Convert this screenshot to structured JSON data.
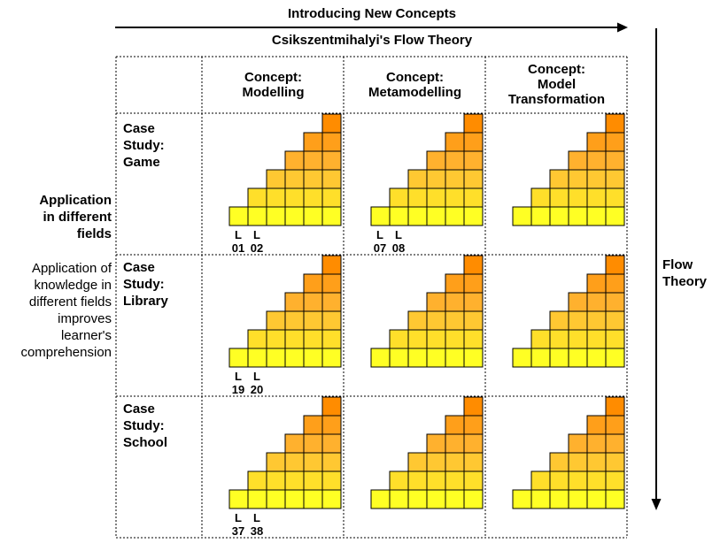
{
  "header": {
    "top_label": "Introducing New Concepts",
    "sub_label": "Csikszentmihalyi's Flow Theory"
  },
  "left": {
    "heading_lines": [
      "Application",
      "in different",
      "fields"
    ],
    "description_lines": [
      "Application of",
      "knowledge in",
      "different fields",
      "improves",
      "learner's",
      "comprehension"
    ]
  },
  "right": {
    "label_lines": [
      "Flow",
      "Theory"
    ]
  },
  "columns": [
    {
      "lines": [
        "Concept:",
        "Modelling"
      ]
    },
    {
      "lines": [
        "Concept:",
        "Metamodelling"
      ]
    },
    {
      "lines": [
        "Concept:",
        "Model",
        "Transformation"
      ]
    }
  ],
  "rows": [
    {
      "lines": [
        "Case",
        "Study:",
        "Game"
      ],
      "lessons": [
        [
          "L",
          "01",
          "L",
          "02"
        ],
        [
          "L",
          "07",
          "L",
          "08"
        ],
        []
      ]
    },
    {
      "lines": [
        "Case",
        "Study:",
        "Library"
      ],
      "lessons": [
        [
          "L",
          "19",
          "L",
          "20"
        ],
        [],
        []
      ]
    },
    {
      "lines": [
        "Case",
        "Study:",
        "School"
      ],
      "lessons": [
        [
          "L",
          "37",
          "L",
          "38"
        ],
        [],
        []
      ]
    }
  ],
  "colors": {
    "row_colors": [
      "#ff8c00",
      "#ff9f1a",
      "#ffb12e",
      "#ffc832",
      "#ffdf2a",
      "#ffff24"
    ],
    "stroke": "#000000",
    "grid_border": "#000000"
  },
  "staircase": {
    "rows": 6,
    "cols": 6
  }
}
